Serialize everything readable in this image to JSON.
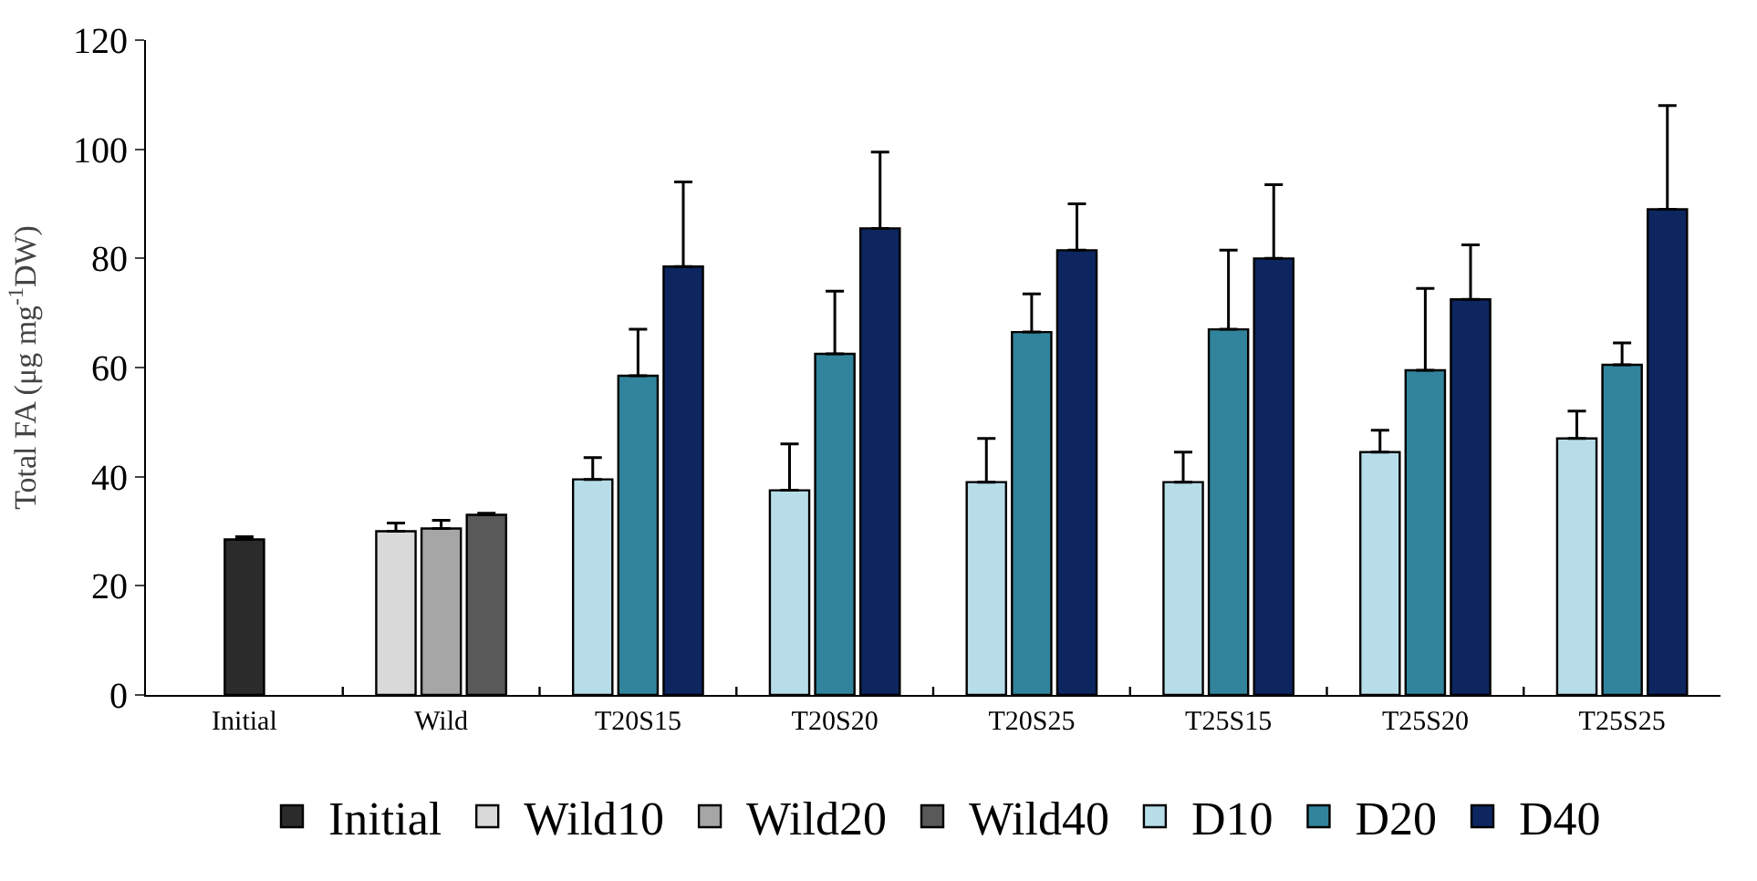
{
  "chart_data": {
    "type": "bar",
    "ylabel": "Total FA (μg mg$^{-1}$DW)",
    "categories": [
      "Initial",
      "Wild",
      "T20S15",
      "T20S20",
      "T20S25",
      "T25S15",
      "T25S20",
      "T25S25"
    ],
    "series": [
      {
        "name": "Initial",
        "color": "#2b2b2b",
        "values": [
          28.5,
          null,
          null,
          null,
          null,
          null,
          null,
          null
        ],
        "errors": [
          0.5,
          null,
          null,
          null,
          null,
          null,
          null,
          null
        ]
      },
      {
        "name": "Wild10",
        "color": "#d9d9d9",
        "values": [
          null,
          30,
          null,
          null,
          null,
          null,
          null,
          null
        ],
        "errors": [
          null,
          1.5,
          null,
          null,
          null,
          null,
          null,
          null
        ]
      },
      {
        "name": "Wild20",
        "color": "#a6a6a6",
        "values": [
          null,
          30.5,
          null,
          null,
          null,
          null,
          null,
          null
        ],
        "errors": [
          null,
          1.5,
          null,
          null,
          null,
          null,
          null,
          null
        ]
      },
      {
        "name": "Wild40",
        "color": "#595959",
        "values": [
          null,
          33,
          null,
          null,
          null,
          null,
          null,
          null
        ],
        "errors": [
          null,
          0.3,
          null,
          null,
          null,
          null,
          null,
          null
        ]
      },
      {
        "name": "D10",
        "color": "#b7dde8",
        "values": [
          null,
          null,
          39.5,
          37.5,
          39,
          39,
          44.5,
          47
        ],
        "errors": [
          null,
          null,
          4,
          8.5,
          8,
          5.5,
          4,
          5
        ]
      },
      {
        "name": "D20",
        "color": "#31849b",
        "values": [
          null,
          null,
          58.5,
          62.5,
          66.5,
          67,
          59.5,
          60.5
        ],
        "errors": [
          null,
          null,
          8.5,
          11.5,
          7,
          14.5,
          15,
          4
        ]
      },
      {
        "name": "D40",
        "color": "#0d2660",
        "values": [
          null,
          null,
          78.5,
          85.5,
          81.5,
          80,
          72.5,
          89
        ],
        "errors": [
          null,
          null,
          15.5,
          14,
          8.5,
          13.5,
          10,
          19
        ]
      }
    ],
    "ylim": [
      0,
      120
    ],
    "yticks": [
      0,
      20,
      40,
      60,
      80,
      100,
      120
    ],
    "legend": "bottom"
  }
}
